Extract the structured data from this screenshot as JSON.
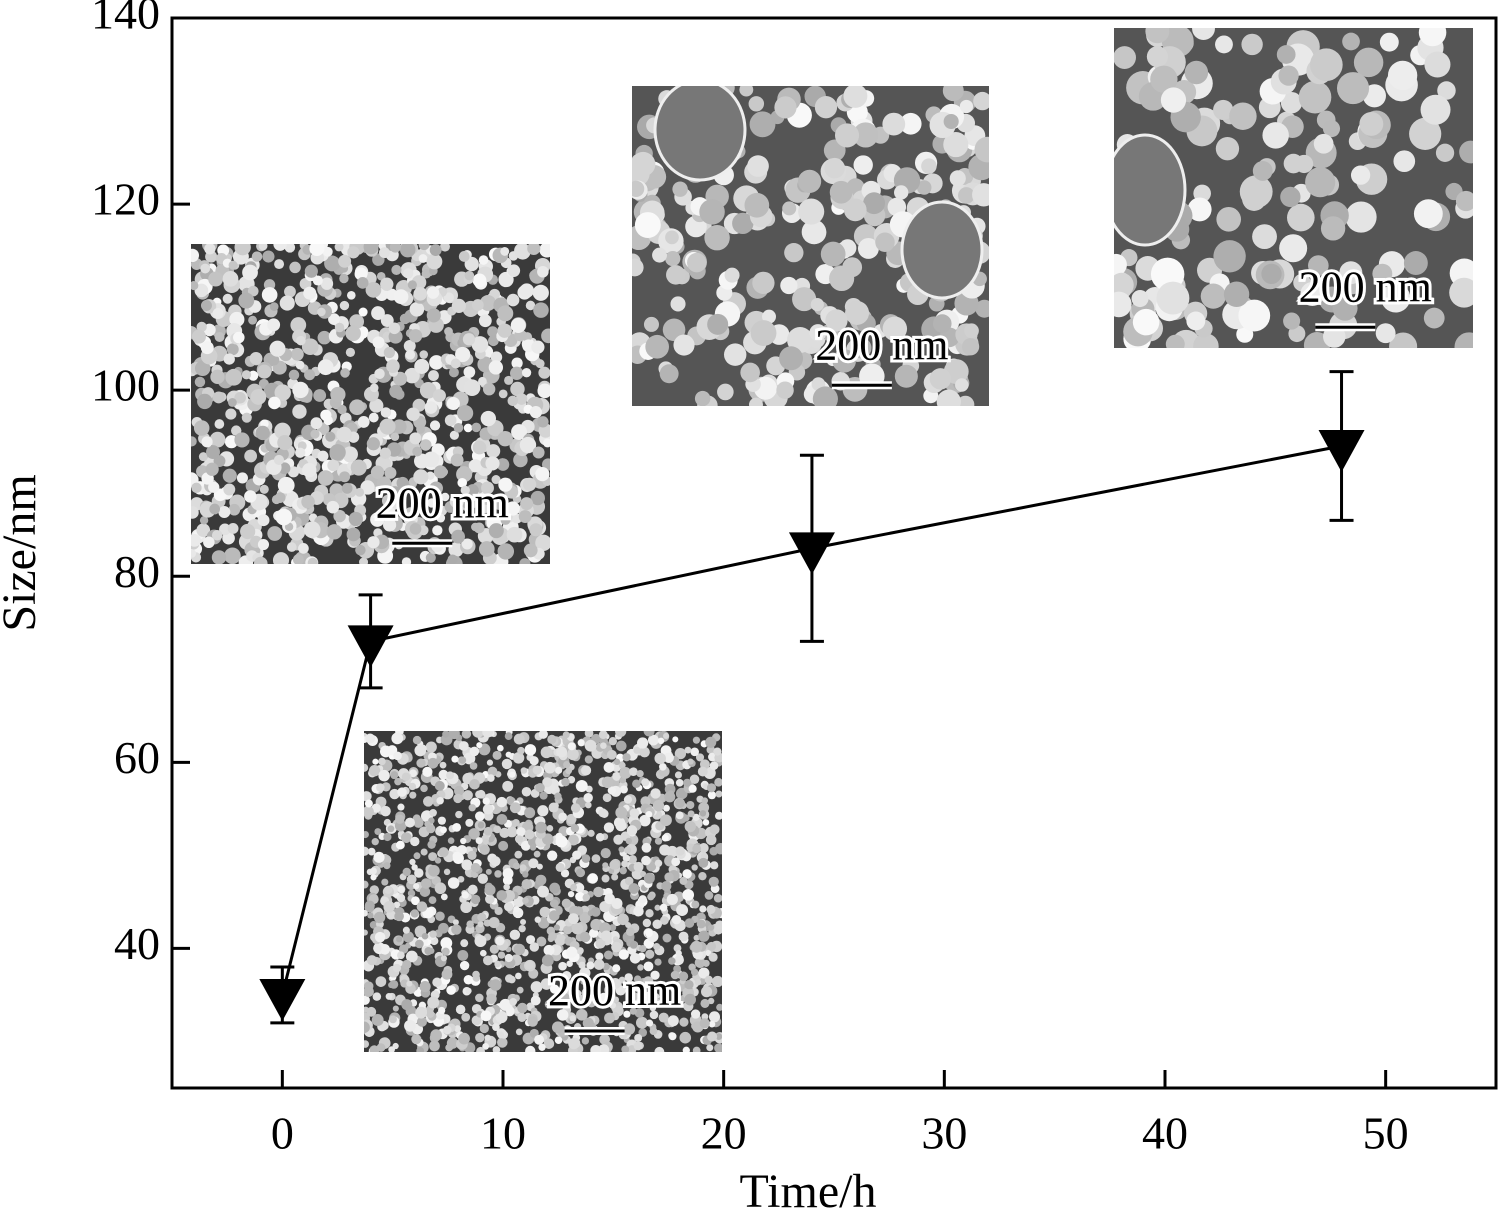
{
  "chart_data": {
    "type": "line",
    "xlabel": "Time/h",
    "ylabel": "Size/nm",
    "x": [
      0,
      4,
      24,
      48
    ],
    "values": [
      35,
      73,
      83,
      94
    ],
    "errors": [
      3,
      5,
      10,
      8
    ],
    "color": "#000000",
    "xlim": [
      -5,
      55
    ],
    "xticks": [
      0,
      10,
      20,
      30,
      40,
      50
    ],
    "ylim": [
      25,
      140
    ],
    "yticks": [
      40,
      60,
      80,
      100,
      120,
      140
    ],
    "inset_labels": [
      "200 nm",
      "200 nm",
      "200 nm",
      "200 nm"
    ]
  }
}
